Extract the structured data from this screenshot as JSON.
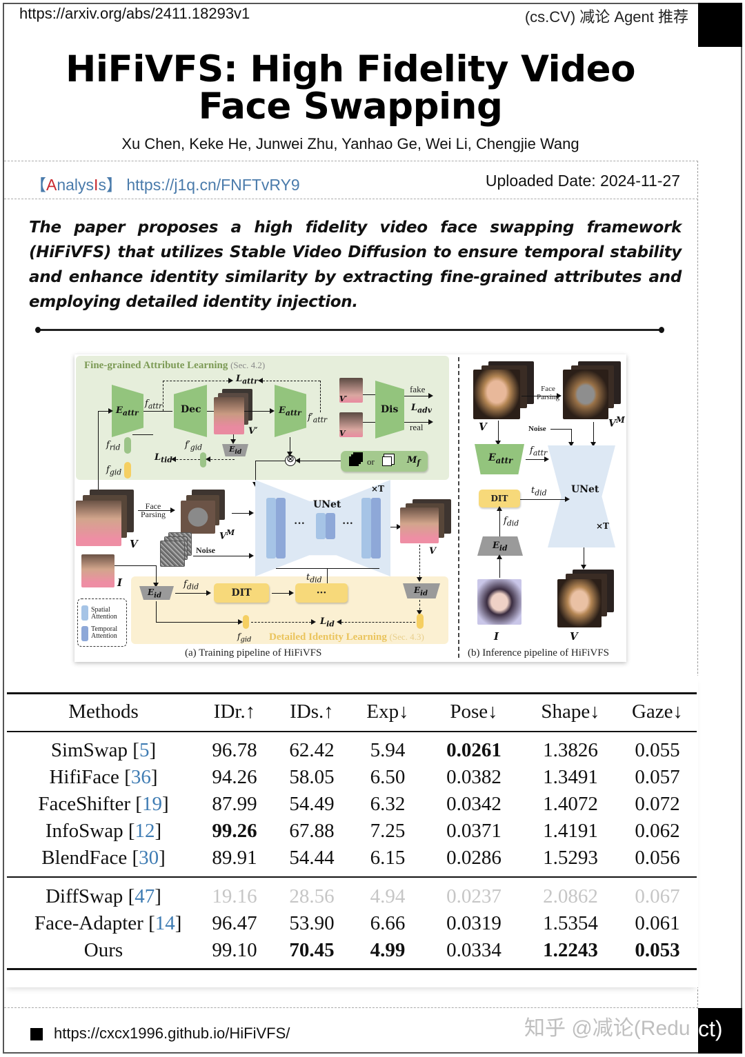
{
  "header": {
    "arxiv_url": "https://arxiv.org/abs/2411.18293v1",
    "category_tag": "(cs.CV) 减论 Agent 推荐"
  },
  "paper": {
    "title": "HiFiVFS: High Fidelity Video Face Swapping",
    "authors": "Xu Chen, Keke He, Junwei Zhu, Yanhao Ge, Wei Li, Chengjie Wang"
  },
  "analysis": {
    "bracket_open": "【",
    "label_a": "A",
    "label_mid": "nalys",
    "label_i": "I",
    "label_s": "s",
    "bracket_close": "】",
    "link": "https://j1q.cn/FNFTvRY9"
  },
  "uploaded": "Uploaded Date: 2024-11-27",
  "summary": "The paper proposes a high fidelity video face swapping framework (HiFiVFS) that utilizes Stable Video Diffusion to ensure temporal stability and enhance identity similarity by extracting fine-grained attributes and employing detailed identity injection.",
  "figure": {
    "training": {
      "fal_title": "Fine-grained Attribute Learning",
      "fal_sec": "(Sec. 4.2)",
      "dil_title": "Detailed Identity Learning",
      "dil_sec": "(Sec. 4.3)",
      "caption": "(a) Training pipeline of HiFiVFS",
      "labels": {
        "e_attr": "E",
        "attr_sub": "attr",
        "dec": "Dec",
        "dis": "Dis",
        "f_attr": "f",
        "f_attr_prime": "f′",
        "l_attr": "L",
        "l_adv": "L",
        "l_tid": "L",
        "l_id": "L",
        "f_rid": "f",
        "f_gid": "f",
        "f_gid_prime": "f′",
        "f_did": "f",
        "t_did": "t",
        "e_id": "E",
        "v_t_prime": "V′",
        "v_t": "V",
        "v_t_m": "V",
        "v_r": "V",
        "i_s": "I",
        "m_f": "M",
        "fake": "fake",
        "real": "real",
        "or": "or",
        "face_parsing_1": "Face",
        "face_parsing_2": "Parsing",
        "noise": "Noise",
        "unet": "UNet",
        "times_t": "×T",
        "dit": "DIT",
        "ellipsis": "···"
      },
      "legend": {
        "spatial": "Spatial Attention",
        "temporal": "Temporal Attention"
      }
    },
    "inference": {
      "caption": "(b) Inference pipeline of HiFiVFS",
      "labels": {
        "face_parsing_1": "Face",
        "face_parsing_2": "Parsing",
        "noise": "Noise",
        "unet": "UNet",
        "times_t": "×T",
        "dit": "DIT"
      }
    }
  },
  "table": {
    "headers": [
      "Methods",
      "IDr.↑",
      "IDs.↑",
      "Exp↓",
      "Pose↓",
      "Shape↓",
      "Gaze↓"
    ],
    "rows": [
      {
        "method": "SimSwap",
        "ref": "5",
        "values": [
          "96.78",
          "62.42",
          "5.94",
          "0.0261",
          "1.3826",
          "0.055"
        ],
        "bold": [
          false,
          false,
          false,
          true,
          false,
          false
        ],
        "faded": false
      },
      {
        "method": "HifiFace",
        "ref": "36",
        "values": [
          "94.26",
          "58.05",
          "6.50",
          "0.0382",
          "1.3491",
          "0.057"
        ],
        "bold": [
          false,
          false,
          false,
          false,
          false,
          false
        ],
        "faded": false
      },
      {
        "method": "FaceShifter",
        "ref": "19",
        "values": [
          "87.99",
          "54.49",
          "6.32",
          "0.0342",
          "1.4072",
          "0.072"
        ],
        "bold": [
          false,
          false,
          false,
          false,
          false,
          false
        ],
        "faded": false
      },
      {
        "method": "InfoSwap",
        "ref": "12",
        "values": [
          "99.26",
          "67.88",
          "7.25",
          "0.0371",
          "1.4191",
          "0.062"
        ],
        "bold": [
          true,
          false,
          false,
          false,
          false,
          false
        ],
        "faded": false
      },
      {
        "method": "BlendFace",
        "ref": "30",
        "values": [
          "89.91",
          "54.44",
          "6.15",
          "0.0286",
          "1.5293",
          "0.056"
        ],
        "bold": [
          false,
          false,
          false,
          false,
          false,
          false
        ],
        "faded": false
      },
      {
        "method": "DiffSwap",
        "ref": "47",
        "values": [
          "19.16",
          "28.56",
          "4.94",
          "0.0237",
          "2.0862",
          "0.067"
        ],
        "bold": [
          false,
          false,
          false,
          false,
          false,
          false
        ],
        "faded": true
      },
      {
        "method": "Face-Adapter",
        "ref": "14",
        "values": [
          "96.47",
          "53.90",
          "6.66",
          "0.0319",
          "1.5354",
          "0.061"
        ],
        "bold": [
          false,
          false,
          false,
          false,
          false,
          false
        ],
        "faded": false
      },
      {
        "method": "Ours",
        "ref": "",
        "values": [
          "99.10",
          "70.45",
          "4.99",
          "0.0334",
          "1.2243",
          "0.053"
        ],
        "bold": [
          false,
          true,
          true,
          false,
          true,
          true
        ],
        "faded": false
      }
    ]
  },
  "footer": {
    "project_url": "https://cxcx1996.github.io/HiFiVFS/",
    "watermark": "知乎 @减论(Redu",
    "corner_text": "ct)"
  },
  "colors": {
    "link_blue": "#4a7bab",
    "accent_red": "#c8282e",
    "ref_blue": "#3f7cb3",
    "green_panel": "#e6eedb",
    "yellow_panel": "#fbf0d2",
    "unet_blue": "#dde8f4"
  }
}
